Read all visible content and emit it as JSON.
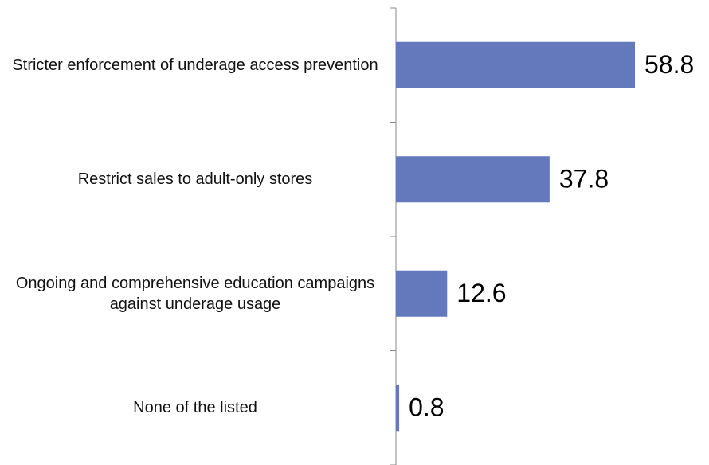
{
  "chart_data": {
    "type": "bar",
    "orientation": "horizontal",
    "categories": [
      "Stricter enforcement of underage access prevention",
      "Restrict sales to adult-only stores",
      "Ongoing and comprehensive education campaigns against underage usage",
      "None of the listed"
    ],
    "values": [
      58.8,
      37.8,
      12.6,
      0.8
    ],
    "color": "#6479bb"
  }
}
